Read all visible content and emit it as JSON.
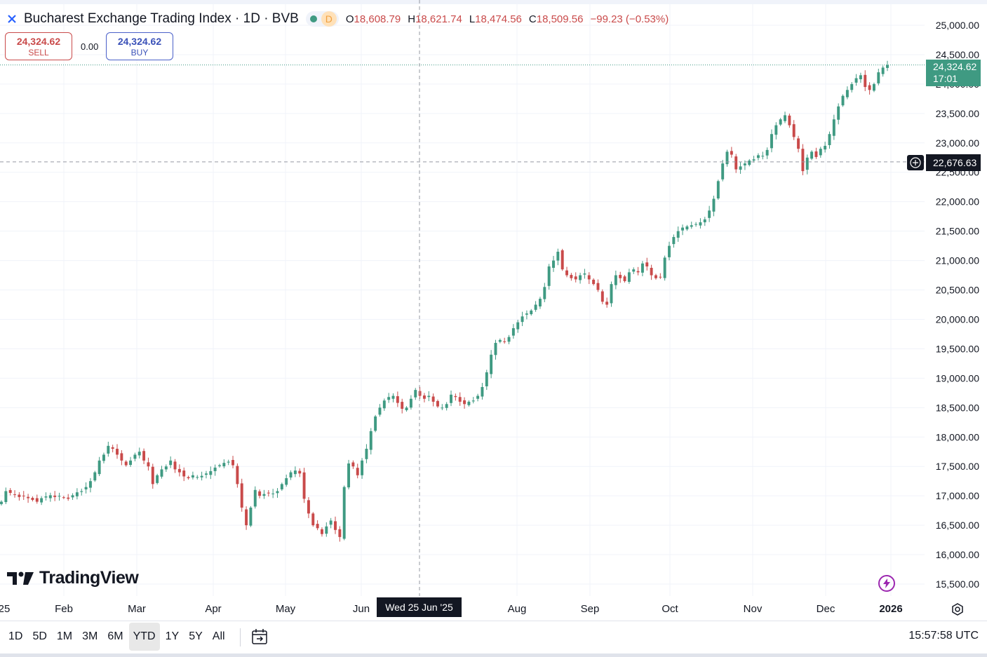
{
  "header": {
    "title": "Bucharest Exchange Trading Index · 1D · BVB",
    "badge": "D",
    "ohlc": {
      "o_key": "O",
      "o_val": "18,608.79",
      "h_key": "H",
      "h_val": "18,621.74",
      "l_key": "L",
      "l_val": "18,474.56",
      "c_key": "C",
      "c_val": "18,509.56",
      "change": "−99.23 (−0.53%)"
    }
  },
  "trade": {
    "sell_price": "24,324.62",
    "sell_label": "SELL",
    "spread": "0.00",
    "buy_price": "24,324.62",
    "buy_label": "BUY"
  },
  "price_tags": {
    "last_price": "24,324.62",
    "countdown": "17:01",
    "crosshair_price": "22,676.63",
    "crosshair_date": "Wed 25 Jun '25"
  },
  "branding": {
    "logo_text": "TradingView"
  },
  "timeframes": [
    "1D",
    "5D",
    "1M",
    "3M",
    "6M",
    "YTD",
    "1Y",
    "5Y",
    "All"
  ],
  "active_timeframe": "YTD",
  "clock": "15:57:58 UTC",
  "colors": {
    "up": "#3f9a82",
    "down": "#c94a4a",
    "grid": "#f0f3fa",
    "crosshair": "#9598a1"
  },
  "chart_data": {
    "type": "candlestick",
    "title": "Bucharest Exchange Trading Index · 1D · BVB",
    "x_labels": [
      "25",
      "Feb",
      "Mar",
      "Apr",
      "May",
      "Jun",
      "Aug",
      "Sep",
      "Oct",
      "Nov",
      "Dec",
      "2026"
    ],
    "y_ticks": [
      "25,000.00",
      "24,500.00",
      "24,000.00",
      "23,500.00",
      "23,000.00",
      "22,500.00",
      "22,000.00",
      "21,500.00",
      "21,000.00",
      "20,500.00",
      "20,000.00",
      "19,500.00",
      "19,000.00",
      "18,500.00",
      "18,000.00",
      "17,500.00",
      "17,000.00",
      "16,500.00",
      "16,000.00",
      "15,500.00"
    ],
    "ylim": [
      15300,
      25200
    ],
    "last_price": 24324.62,
    "crosshair_price": 22676.63,
    "grid": true,
    "closes": [
      16900,
      17080,
      17050,
      17020,
      16980,
      17000,
      16960,
      16930,
      16900,
      16960,
      16990,
      17010,
      16980,
      17000,
      16970,
      16950,
      17010,
      17060,
      17080,
      17150,
      17250,
      17400,
      17600,
      17700,
      17850,
      17800,
      17700,
      17600,
      17520,
      17600,
      17700,
      17750,
      17600,
      17500,
      17200,
      17350,
      17450,
      17500,
      17600,
      17450,
      17400,
      17330,
      17300,
      17350,
      17320,
      17340,
      17380,
      17420,
      17480,
      17520,
      17560,
      17580,
      17520,
      17200,
      16800,
      16500,
      16800,
      17100,
      17000,
      17030,
      17050,
      17040,
      17080,
      17200,
      17300,
      17400,
      17430,
      17380,
      16950,
      16700,
      16500,
      16450,
      16350,
      16480,
      16580,
      16420,
      16300,
      17150,
      17550,
      17500,
      17350,
      17600,
      17800,
      18100,
      18350,
      18500,
      18620,
      18680,
      18700,
      18580,
      18480,
      18500,
      18650,
      18800,
      18700,
      18650,
      18700,
      18600,
      18520,
      18500,
      18560,
      18720,
      18680,
      18600,
      18560,
      18600,
      18620,
      18700,
      18850,
      19100,
      19400,
      19600,
      19650,
      19620,
      19700,
      19850,
      19950,
      20050,
      20100,
      20150,
      20250,
      20350,
      20550,
      20900,
      21000,
      21150,
      20850,
      20750,
      20700,
      20680,
      20750,
      20780,
      20680,
      20600,
      20500,
      20300,
      20250,
      20600,
      20750,
      20700,
      20650,
      20800,
      20850,
      20800,
      20950,
      20900,
      20750,
      20700,
      20720,
      21050,
      21250,
      21400,
      21500,
      21560,
      21580,
      21600,
      21620,
      21650,
      21700,
      21850,
      22050,
      22350,
      22650,
      22850,
      22800,
      22550,
      22600,
      22650,
      22700,
      22720,
      22790,
      22780,
      22880,
      23150,
      23300,
      23400,
      23470,
      23300,
      23100,
      22900,
      22520,
      22750,
      22850,
      22760,
      22900,
      22950,
      23150,
      23400,
      23620,
      23800,
      23900,
      24000,
      24100,
      24150,
      23950,
      23900,
      24000,
      24200,
      24280,
      24325
    ]
  }
}
